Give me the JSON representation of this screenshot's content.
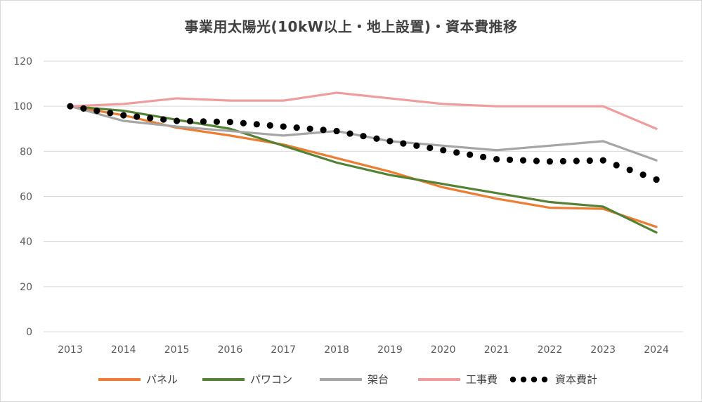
{
  "chart_data": {
    "type": "line",
    "title": "事業用太陽光(10kW以上・地上設置)・資本費推移",
    "xlabel": "",
    "ylabel": "",
    "x": [
      2013,
      2014,
      2015,
      2016,
      2017,
      2018,
      2019,
      2020,
      2021,
      2022,
      2023,
      2024
    ],
    "ylim": [
      0,
      120
    ],
    "yticks": [
      0,
      20,
      40,
      60,
      80,
      100,
      120
    ],
    "grid": true,
    "legend_position": "bottom",
    "series": [
      {
        "name": "パネル",
        "color": "#ed7d31",
        "style": "solid",
        "values": [
          100,
          96,
          90.5,
          87,
          83,
          77,
          71,
          64,
          59,
          55,
          54.5,
          46.5
        ]
      },
      {
        "name": "パワコン",
        "color": "#548235",
        "style": "solid",
        "values": [
          100,
          98,
          94,
          90,
          82.5,
          75,
          69.5,
          65.5,
          61.5,
          57.5,
          55.5,
          44
        ]
      },
      {
        "name": "架台",
        "color": "#a5a5a5",
        "style": "solid",
        "values": [
          100,
          93.5,
          91,
          89,
          87,
          89,
          84.5,
          82.5,
          80.5,
          82.5,
          84.5,
          76
        ]
      },
      {
        "name": "工事費",
        "color": "#f19c9c",
        "style": "solid",
        "values": [
          100,
          101,
          103.5,
          102.5,
          102.5,
          106,
          103.5,
          101,
          100,
          100,
          100,
          90
        ]
      },
      {
        "name": "資本費計",
        "color": "#000000",
        "style": "dotted",
        "values": [
          100,
          96,
          93.5,
          93,
          91,
          89,
          84.5,
          80.5,
          76.5,
          75.5,
          76,
          67.5
        ]
      }
    ]
  }
}
